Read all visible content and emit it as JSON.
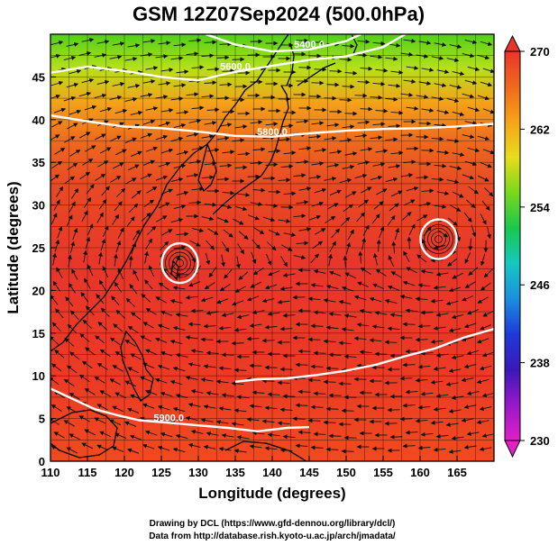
{
  "title": "GSM 12Z07Sep2024 (500.0hPa)",
  "xlabel": "Longitude (degrees)",
  "ylabel": "Latitude  (degrees)",
  "credits": [
    "Drawing by DCL (https://www.gfd-dennou.org/library/dcl/)",
    "Data from http://database.rish.kyoto-u.ac.jp/arch/jmadata/"
  ],
  "map": {
    "lon_range": [
      110,
      170
    ],
    "lat_range": [
      0,
      50
    ],
    "lon_ticks": [
      "110",
      "115",
      "120",
      "125",
      "130",
      "135",
      "140",
      "145",
      "150",
      "155",
      "160",
      "165"
    ],
    "lat_ticks": [
      "0",
      "5",
      "10",
      "15",
      "20",
      "25",
      "30",
      "35",
      "40",
      "45"
    ],
    "grid": true,
    "shaded_variable_range": [
      230,
      270
    ],
    "contours": [
      {
        "label": "5800.0",
        "points": [
          [
            110,
            40.5
          ],
          [
            115,
            39.8
          ],
          [
            120,
            39.2
          ],
          [
            125,
            39
          ],
          [
            130,
            38.6
          ],
          [
            135,
            38.1
          ],
          [
            140,
            38
          ],
          [
            145,
            38.4
          ],
          [
            150,
            38.7
          ],
          [
            155,
            38.9
          ],
          [
            160,
            39
          ],
          [
            165,
            39.2
          ],
          [
            170,
            39.5
          ]
        ]
      },
      {
        "label": "5600.0",
        "points": [
          [
            110,
            45.5
          ],
          [
            115,
            46.2
          ],
          [
            120,
            45.7
          ],
          [
            125,
            45
          ],
          [
            130,
            44.6
          ],
          [
            135,
            45.6
          ],
          [
            140,
            46.3
          ],
          [
            145,
            47
          ],
          [
            150,
            47.4
          ],
          [
            155,
            48.5
          ],
          [
            158,
            50
          ]
        ]
      },
      {
        "label": "5400.0",
        "points": [
          [
            131,
            50
          ],
          [
            135,
            48.8
          ],
          [
            140,
            48
          ],
          [
            145,
            48.2
          ],
          [
            150,
            49.2
          ],
          [
            152,
            50
          ]
        ]
      },
      {
        "label": "5900.0",
        "points": [
          [
            110,
            8.5
          ],
          [
            113,
            7.3
          ],
          [
            116,
            6.1
          ],
          [
            119,
            5.4
          ],
          [
            122,
            4.8
          ],
          [
            126,
            4.5
          ],
          [
            130,
            4.2
          ],
          [
            134,
            3.9
          ],
          [
            138,
            3.5
          ],
          [
            142,
            3.9
          ],
          [
            145,
            4
          ]
        ]
      },
      {
        "label": "",
        "points": [
          [
            170,
            15.5
          ],
          [
            166,
            14.5
          ],
          [
            162,
            13.2
          ],
          [
            158,
            12.3
          ],
          [
            154,
            11.3
          ],
          [
            150,
            10.6
          ],
          [
            146,
            10.1
          ],
          [
            142,
            9.7
          ],
          [
            138,
            9.6
          ],
          [
            135,
            9.3
          ]
        ]
      }
    ],
    "vortices": [
      {
        "lon": 127.5,
        "lat": 23.2
      },
      {
        "lon": 162.5,
        "lat": 26
      }
    ]
  },
  "colorbar": {
    "ticks": [
      "270",
      "262",
      "254",
      "246",
      "238",
      "230"
    ],
    "colors": [
      "#e8352a",
      "#f06a1c",
      "#f7a419",
      "#e8dc1c",
      "#78d81c",
      "#18c84e",
      "#16c8c0",
      "#1a8ee0",
      "#1e3ad8",
      "#3a18b8",
      "#9a18c8",
      "#e020c8"
    ]
  }
}
